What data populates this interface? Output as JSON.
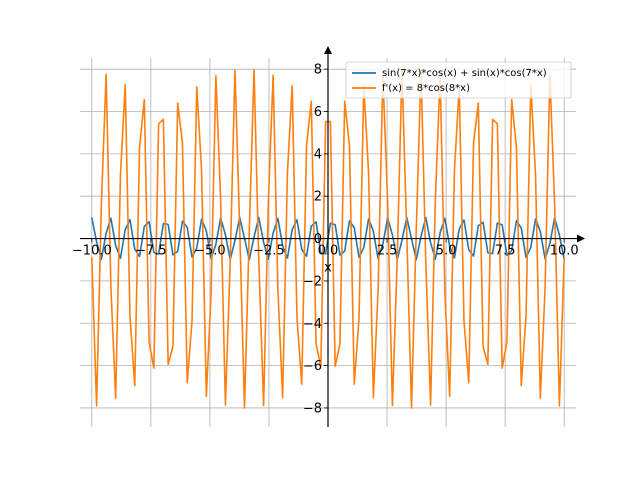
{
  "chart_data": {
    "type": "line",
    "title": "",
    "xlabel": "x",
    "ylabel": "",
    "xlim": [
      -10.5,
      10.5
    ],
    "ylim": [
      -8.9,
      9.0
    ],
    "grid": true,
    "legend_position": "top-right",
    "x_ticks": [
      -10.0,
      -7.5,
      -5.0,
      -2.5,
      0.0,
      2.5,
      5.0,
      7.5,
      10.0
    ],
    "x_tick_labels": [
      "−10.0",
      "−7.5",
      "−5.0",
      "−2.5",
      "0.0",
      "2.5",
      "5.0",
      "7.5",
      "10.0"
    ],
    "y_ticks": [
      -8,
      -6,
      -4,
      -2,
      0,
      2,
      4,
      6,
      8
    ],
    "y_tick_labels": [
      "−8",
      "−6",
      "−4",
      "−2",
      "0",
      "2",
      "4",
      "6",
      "8"
    ],
    "series": [
      {
        "name": "sin(7*x)*cos(x) + sin(x)*cos(7*x)",
        "color": "#1f77b4",
        "function": "sin(8x)",
        "x_range": [
          -10,
          10
        ],
        "samples": 100
      },
      {
        "name": "f'(x) = 8*cos(8*x)",
        "color": "#ff7f0e",
        "function": "8cos(8x)",
        "x_range": [
          -10,
          10
        ],
        "samples": 100
      }
    ]
  }
}
